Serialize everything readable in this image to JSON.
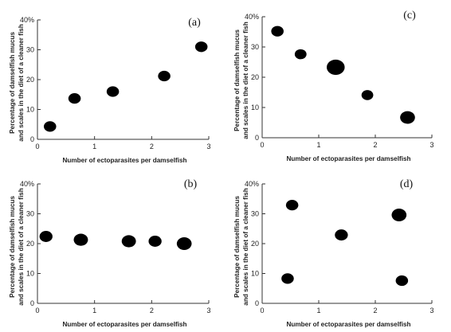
{
  "chart_data": [
    {
      "type": "scatter",
      "panel_label": "(a)",
      "xlabel": "Number of ectoparasites per damselfish",
      "ylabel": [
        "Percentage of damselfish mucus",
        "and scales in the diet of a cleaner fish"
      ],
      "xlim": [
        0,
        3
      ],
      "ylim": [
        0,
        40
      ],
      "xticks": [
        "0",
        "1",
        "2",
        "3"
      ],
      "yticks": [
        "0",
        "10",
        "20",
        "30",
        "40%"
      ],
      "points": [
        {
          "x": 0.22,
          "y": 4.3
        },
        {
          "x": 0.65,
          "y": 13.7
        },
        {
          "x": 1.32,
          "y": 16.0
        },
        {
          "x": 2.22,
          "y": 21.2
        },
        {
          "x": 2.87,
          "y": 31.0
        }
      ]
    },
    {
      "type": "scatter",
      "panel_label": "(c)",
      "xlabel": "Number of ectoparasites per damselfish",
      "ylabel": [
        "Percentage of damselfish mucus",
        "and scales in the diet of a cleaner fish"
      ],
      "xlim": [
        0,
        3
      ],
      "ylim": [
        0,
        40
      ],
      "xticks": [
        "0",
        "1",
        "2",
        "3"
      ],
      "yticks": [
        "0",
        "10",
        "20",
        "30",
        "40%"
      ],
      "points": [
        {
          "x": 0.27,
          "y": 35.2
        },
        {
          "x": 0.68,
          "y": 27.6
        },
        {
          "x": 1.3,
          "y": 23.3
        },
        {
          "x": 1.86,
          "y": 14.1
        },
        {
          "x": 2.57,
          "y": 6.7
        }
      ]
    },
    {
      "type": "scatter",
      "panel_label": "(b)",
      "xlabel": "Number of ectoparasites per damselfish",
      "ylabel": [
        "Percentage of damselfish mucus",
        "and scales in the diet of a cleaner fish"
      ],
      "xlim": [
        0,
        3
      ],
      "ylim": [
        0,
        40
      ],
      "xticks": [
        "0",
        "1",
        "2",
        "3"
      ],
      "yticks": [
        "0",
        "10",
        "20",
        "30",
        "40%"
      ],
      "points": [
        {
          "x": 0.15,
          "y": 22.4
        },
        {
          "x": 0.76,
          "y": 21.3
        },
        {
          "x": 1.6,
          "y": 20.8
        },
        {
          "x": 2.06,
          "y": 20.8
        },
        {
          "x": 2.57,
          "y": 20.0
        }
      ]
    },
    {
      "type": "scatter",
      "panel_label": "(d)",
      "xlabel": "Number of ectoparasites per damselfish",
      "ylabel": [
        "Percentage of damselfish mucus",
        "and scales in the diet of a cleaner fish"
      ],
      "xlim": [
        0,
        3
      ],
      "ylim": [
        0,
        40
      ],
      "xticks": [
        "0",
        "1",
        "2",
        "3"
      ],
      "yticks": [
        "0",
        "10",
        "20",
        "30",
        "40%"
      ],
      "points": [
        {
          "x": 0.45,
          "y": 8.3
        },
        {
          "x": 0.53,
          "y": 32.9
        },
        {
          "x": 1.4,
          "y": 22.9
        },
        {
          "x": 2.42,
          "y": 29.6
        },
        {
          "x": 2.47,
          "y": 7.6
        }
      ]
    }
  ]
}
